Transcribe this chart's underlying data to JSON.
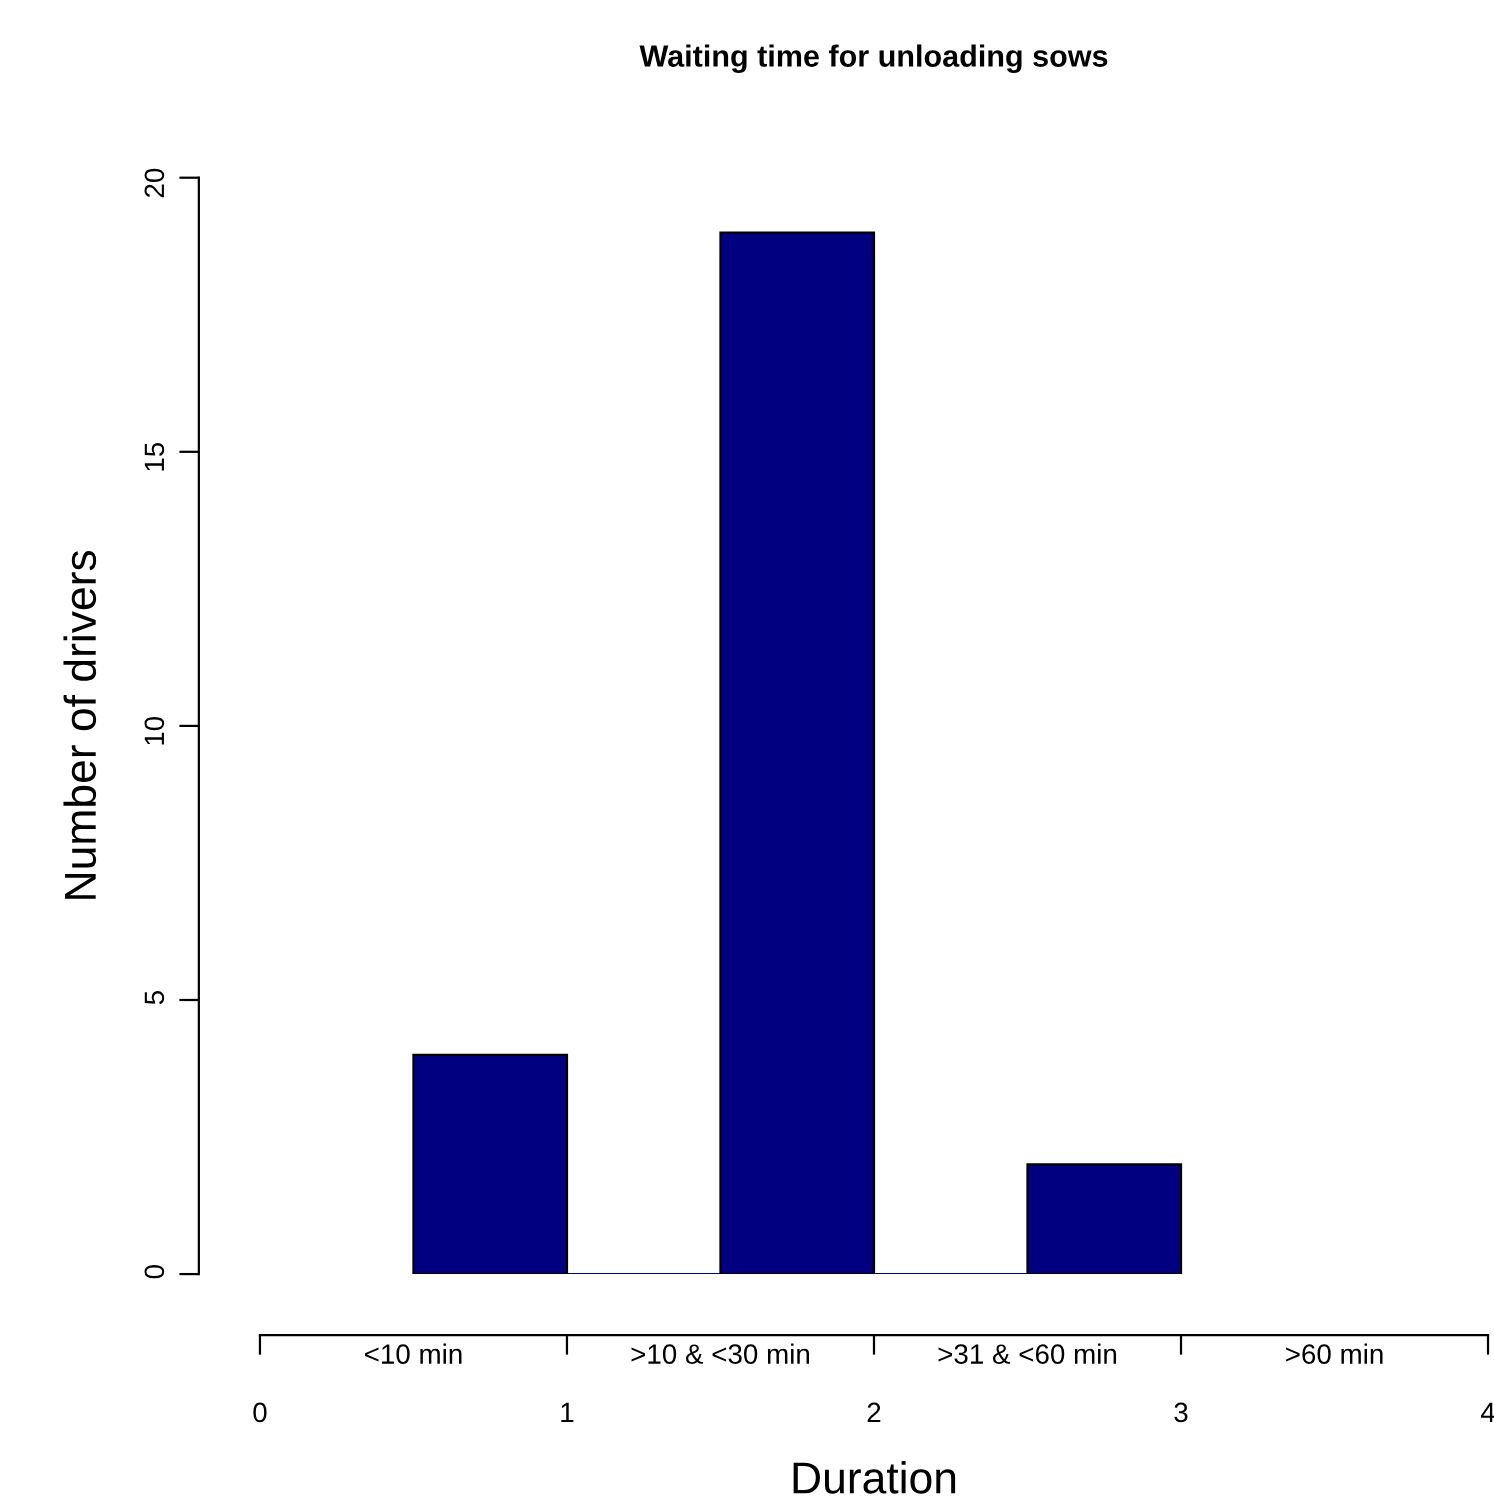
{
  "chart_data": {
    "type": "histogram",
    "title": "Waiting time for unloading sows",
    "xlabel": "Duration",
    "ylabel": "Number of drivers",
    "bins": [
      0.5,
      1,
      1.5,
      2,
      2.5,
      3
    ],
    "values": [
      4,
      0,
      19,
      0,
      2
    ],
    "color": "#000080",
    "categories": [
      "<10 min",
      ">10 & <30 min",
      ">31 & <60 min",
      ">60 min"
    ],
    "xlim": [
      0,
      4
    ],
    "xticks": [
      0,
      1,
      2,
      3,
      4
    ],
    "ylim": [
      0,
      20
    ],
    "yticks": [
      0,
      5,
      10,
      15,
      20
    ],
    "grid": false,
    "legend": false
  }
}
